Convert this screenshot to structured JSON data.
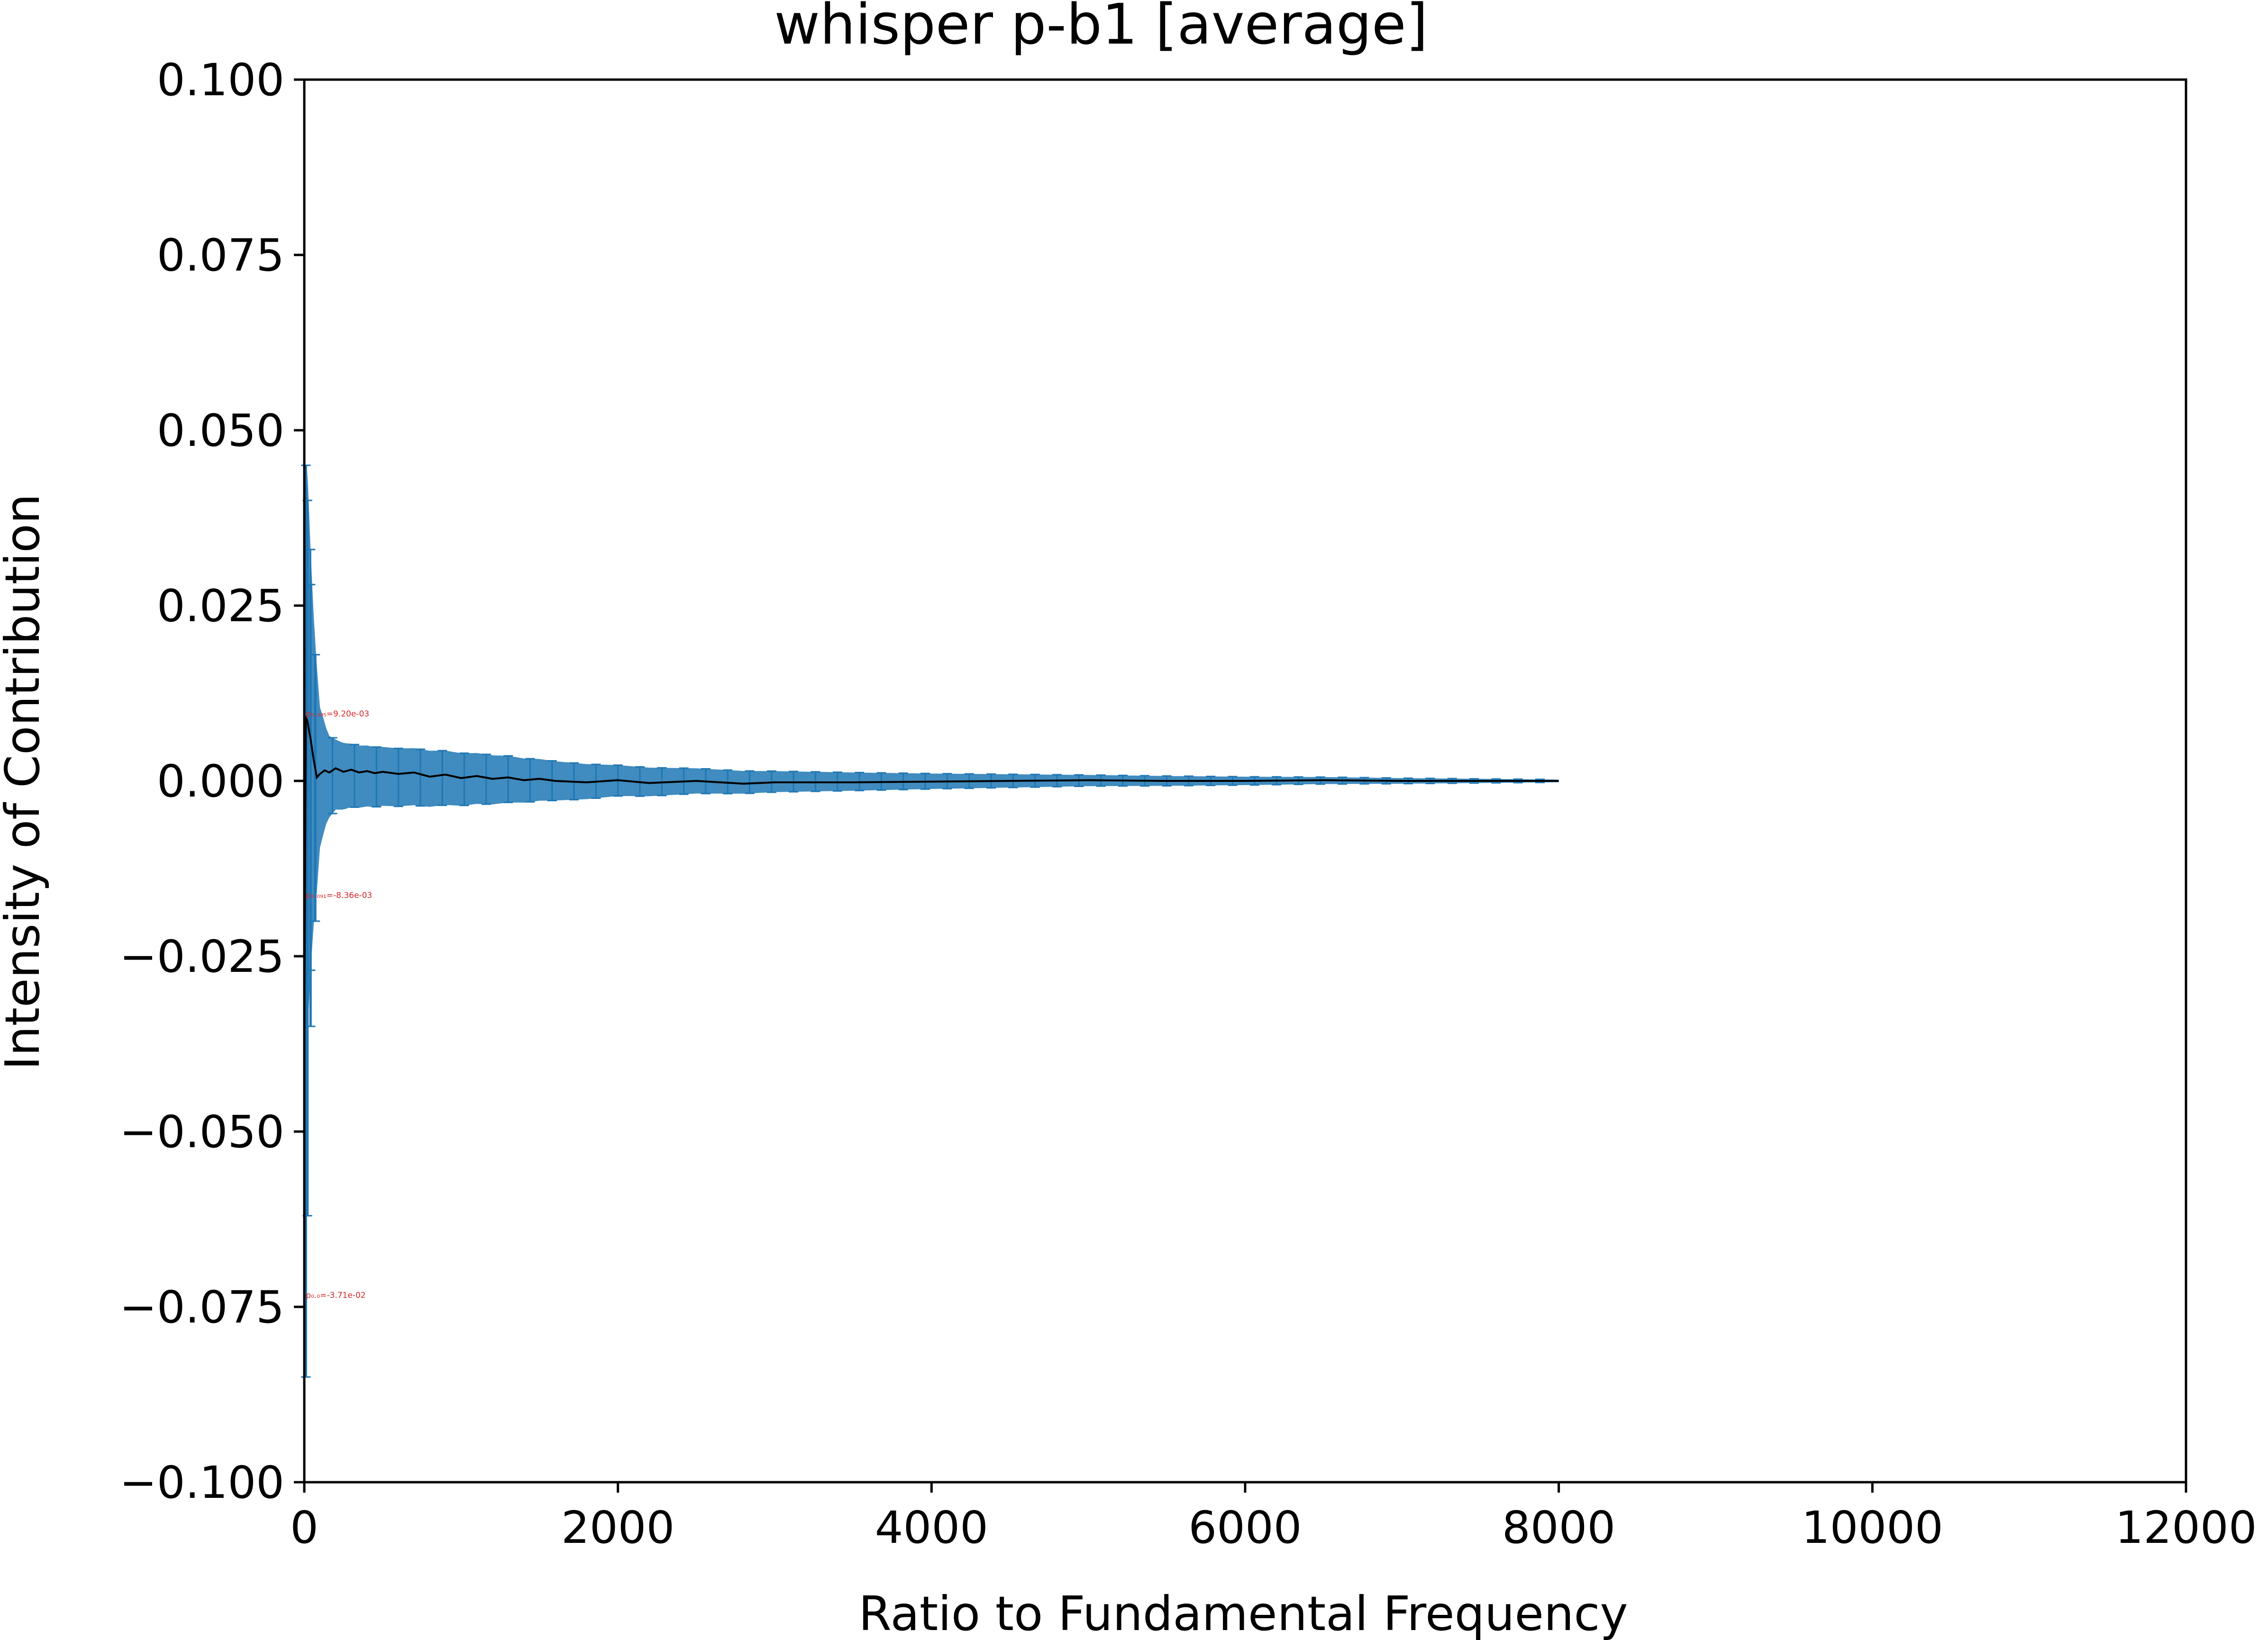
{
  "chart_data": {
    "type": "line",
    "title": "whisper p-b1 [average]",
    "xlabel": "Ratio to Fundamental Frequency",
    "ylabel": "Intensity of Contribution",
    "xlim": [
      0,
      12000
    ],
    "ylim": [
      -0.1,
      0.1
    ],
    "x_ticks": [
      0,
      2000,
      4000,
      6000,
      8000,
      10000,
      12000
    ],
    "x_tick_labels": [
      "0",
      "2000",
      "4000",
      "6000",
      "8000",
      "10000",
      "12000"
    ],
    "y_ticks": [
      0.1,
      0.075,
      0.05,
      0.025,
      0.0,
      -0.025,
      -0.05,
      -0.075,
      -0.1
    ],
    "y_tick_labels": [
      "0.100",
      "0.075",
      "0.050",
      "0.025",
      "0.000",
      "−0.025",
      "−0.050",
      "−0.075",
      "−0.100"
    ],
    "grid": false,
    "series": [
      {
        "color": "#000000",
        "x": [
          0,
          10,
          20,
          40,
          60,
          80,
          100,
          130,
          160,
          200,
          250,
          300,
          350,
          400,
          450,
          500,
          600,
          700,
          800,
          900,
          1000,
          1100,
          1200,
          1300,
          1400,
          1500,
          1600,
          1800,
          2000,
          2200,
          2500,
          2800,
          3000,
          3500,
          4000,
          4500,
          5000,
          5500,
          6000,
          6500,
          7000,
          7500,
          8000
        ],
        "y": [
          -0.0371,
          0.0092,
          0.0085,
          0.006,
          0.003,
          0.0005,
          0.001,
          0.0015,
          0.0012,
          0.0018,
          0.0013,
          0.0016,
          0.0012,
          0.0014,
          0.0011,
          0.0013,
          0.001,
          0.0012,
          0.0006,
          0.0009,
          0.0004,
          0.0007,
          0.0003,
          0.0005,
          0.0001,
          0.0003,
          0.0,
          -0.0002,
          0.0001,
          -0.0003,
          0.0,
          -0.0004,
          -0.0002,
          -0.0002,
          -0.0001,
          0.0,
          0.0001,
          0.0,
          0.0,
          0.0001,
          0.0,
          0.0,
          0.0
        ]
      }
    ],
    "error_band": {
      "color": "#1f77b4",
      "x": [
        0,
        20,
        50,
        100,
        150,
        200,
        300,
        500,
        800,
        1200,
        1600,
        2000,
        2500,
        3000,
        3500,
        4000,
        5000,
        6000,
        7000,
        8000
      ],
      "half_width": [
        0.045,
        0.04,
        0.025,
        0.01,
        0.006,
        0.005,
        0.0045,
        0.0042,
        0.004,
        0.0035,
        0.0028,
        0.0022,
        0.0018,
        0.0015,
        0.0013,
        0.0011,
        0.0008,
        0.0006,
        0.0004,
        0.0002
      ]
    },
    "annotations": [
      {
        "text": "p₀.₃₉₅=9.20e-03",
        "x": 10,
        "y": 0.0092
      },
      {
        "text": "p₀.₀₉₁=-8.36e-03",
        "x": 10,
        "y": -0.0167
      },
      {
        "text": "p₀.₀=-3.71e-02",
        "x": 10,
        "y": -0.0737
      }
    ]
  }
}
